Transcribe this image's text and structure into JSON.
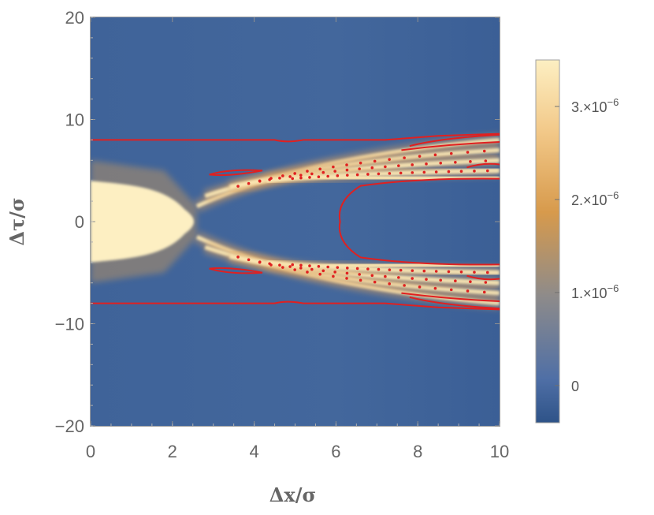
{
  "chart_data": {
    "type": "heatmap",
    "title": "",
    "xlabel": "Δx/σ",
    "ylabel": "Δτ/σ",
    "xlim": [
      0,
      10
    ],
    "ylim": [
      -20,
      20
    ],
    "x_ticks": [
      "0",
      "2",
      "4",
      "6",
      "8",
      "10"
    ],
    "y_ticks": [
      "20",
      "10",
      "0",
      "−10",
      "−20"
    ],
    "colorbar": {
      "range": [
        -4e-07,
        3.5e-06
      ],
      "ticks": [
        {
          "label": "0",
          "value": 0
        },
        {
          "label": "1.×10",
          "exp": "−6",
          "value": 1e-06
        },
        {
          "label": "2.×10",
          "exp": "−6",
          "value": 2e-06
        },
        {
          "label": "3.×10",
          "exp": "−6",
          "value": 3e-06
        }
      ],
      "colors": [
        "#2e5388",
        "#4f6fa6",
        "#8e8b8a",
        "#d79a4c",
        "#f2c888",
        "#fdefc2"
      ]
    },
    "contour_color": "#e02020",
    "features": {
      "central_band_halfwidth": 4,
      "contour_level_line": 8,
      "fringes_upper": [
        {
          "x0": 2.6,
          "y0": 1.5,
          "x1": 10,
          "y1": 8.0
        },
        {
          "x0": 2.8,
          "y0": 2.5,
          "x1": 10,
          "y1": 7.0
        },
        {
          "x0": 3.4,
          "y0": 3.4,
          "x1": 10,
          "y1": 6.0
        },
        {
          "x0": 4.3,
          "y0": 4.0,
          "x1": 10,
          "y1": 5.0
        },
        {
          "x0": 5.2,
          "y0": 4.4,
          "x1": 10,
          "y1": 4.2
        }
      ]
    }
  }
}
